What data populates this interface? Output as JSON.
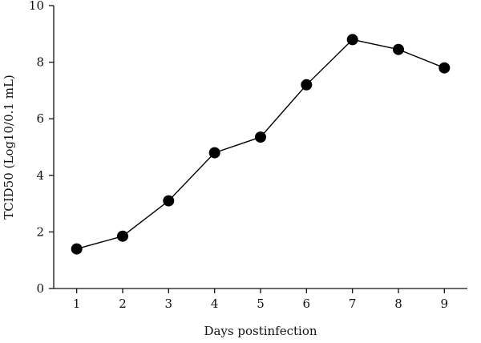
{
  "chart_data": {
    "type": "line",
    "xlabel": "Days postinfection",
    "ylabel": "TCID50 (Log10/0.1 mL)",
    "xlim": [
      0.5,
      9.5
    ],
    "ylim": [
      0,
      10
    ],
    "x_ticks": [
      1,
      2,
      3,
      4,
      5,
      6,
      7,
      8,
      9
    ],
    "y_ticks": [
      0,
      2,
      4,
      6,
      8,
      10
    ],
    "grid": false,
    "series": [
      {
        "x": [
          1,
          2,
          3,
          4,
          5,
          6,
          7,
          8,
          9
        ],
        "values": [
          1.4,
          1.85,
          3.1,
          4.8,
          5.35,
          7.2,
          8.8,
          8.45,
          7.8
        ],
        "color": "#000000",
        "marker": "filled-circle"
      }
    ]
  }
}
